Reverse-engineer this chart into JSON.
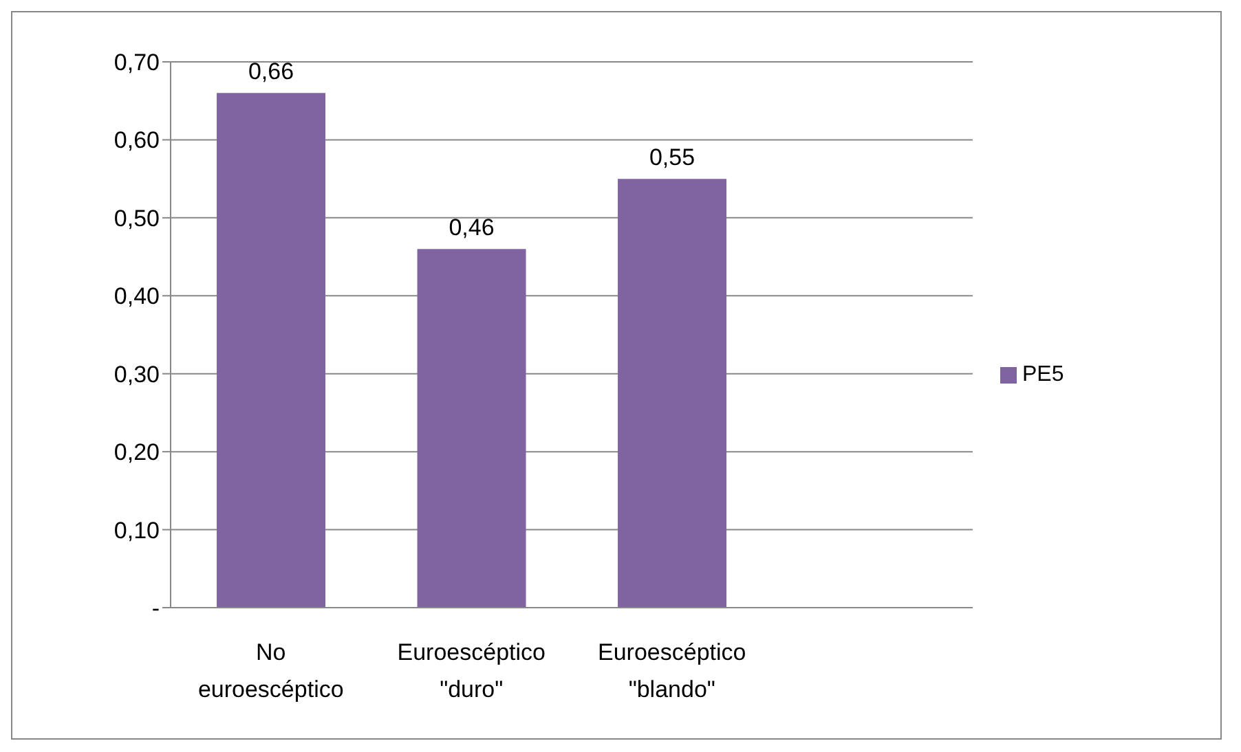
{
  "chart_data": {
    "type": "bar",
    "categories": [
      "No euroescéptico",
      "Euroescéptico \"duro\"",
      "Euroescéptico \"blando\"",
      null
    ],
    "series": [
      {
        "name": "PE5",
        "color": "#8064a2",
        "values": [
          0.66,
          0.46,
          0.55,
          null
        ],
        "value_labels": [
          "0,66",
          "0,46",
          "0,55",
          null
        ]
      }
    ],
    "ylim": [
      0,
      0.7
    ],
    "yticks": [
      {
        "value": 0,
        "label": "-"
      },
      {
        "value": 0.1,
        "label": "0,10"
      },
      {
        "value": 0.2,
        "label": "0,20"
      },
      {
        "value": 0.3,
        "label": "0,30"
      },
      {
        "value": 0.4,
        "label": "0,40"
      },
      {
        "value": 0.5,
        "label": "0,50"
      },
      {
        "value": 0.6,
        "label": "0,60"
      },
      {
        "value": 0.7,
        "label": "0,70"
      }
    ],
    "grid": "y",
    "legend": "right"
  }
}
